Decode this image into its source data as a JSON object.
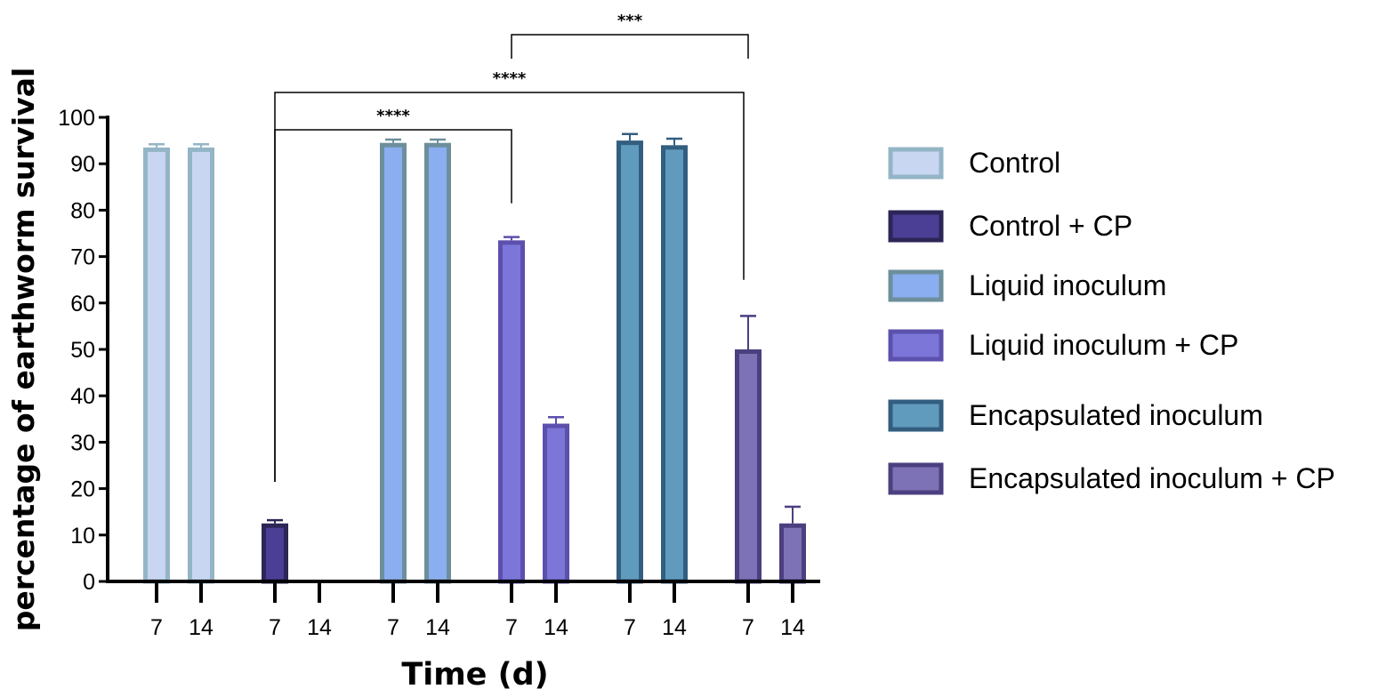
{
  "chart_data": {
    "type": "bar",
    "xlabel": "Time (d)",
    "ylabel": "percentage of earthworm survival",
    "ylim": [
      0,
      100
    ],
    "yticks": [
      0,
      10,
      20,
      30,
      40,
      50,
      60,
      70,
      80,
      90,
      100
    ],
    "legend_position": "right",
    "grid": false,
    "series": [
      {
        "name": "Control",
        "fill": "#c8d6f2",
        "stroke": "#93b5c6",
        "x": [
          "7",
          "14"
        ],
        "values": [
          93.5,
          93.5
        ],
        "errors": [
          0.7,
          0.7
        ]
      },
      {
        "name": "Control + CP",
        "fill": "#4a3e95",
        "stroke": "#2c2657",
        "x": [
          "7",
          "14"
        ],
        "values": [
          12.5,
          0
        ],
        "errors": [
          0.7,
          0
        ]
      },
      {
        "name": "Liquid inoculum",
        "fill": "#8aaeef",
        "stroke": "#6d8f9c",
        "x": [
          "7",
          "14"
        ],
        "values": [
          94.5,
          94.5
        ],
        "errors": [
          0.7,
          0.7
        ]
      },
      {
        "name": "Liquid inoculum + CP",
        "fill": "#7b76d8",
        "stroke": "#5c50ad",
        "x": [
          "7",
          "14"
        ],
        "values": [
          73.5,
          34
        ],
        "errors": [
          0.7,
          1.4
        ]
      },
      {
        "name": "Encapsulated inoculum",
        "fill": "#609bbe",
        "stroke": "#335e80",
        "x": [
          "7",
          "14"
        ],
        "values": [
          95,
          94
        ],
        "errors": [
          1.4,
          1.4
        ]
      },
      {
        "name": "Encapsulated inoculum + CP",
        "fill": "#7d72b5",
        "stroke": "#4c3f80",
        "x": [
          "7",
          "14"
        ],
        "values": [
          50,
          12.5
        ],
        "errors": [
          7.2,
          3.6
        ]
      }
    ],
    "significance": [
      {
        "label": "****",
        "from_series": 1,
        "from_x": "7",
        "to_series": 3,
        "to_x": "7"
      },
      {
        "label": "****",
        "from_series": 1,
        "from_x": "7",
        "to_series": 5,
        "to_x": "7"
      },
      {
        "label": "***",
        "from_series": 3,
        "from_x": "7",
        "to_series": 5,
        "to_x": "7"
      }
    ]
  }
}
